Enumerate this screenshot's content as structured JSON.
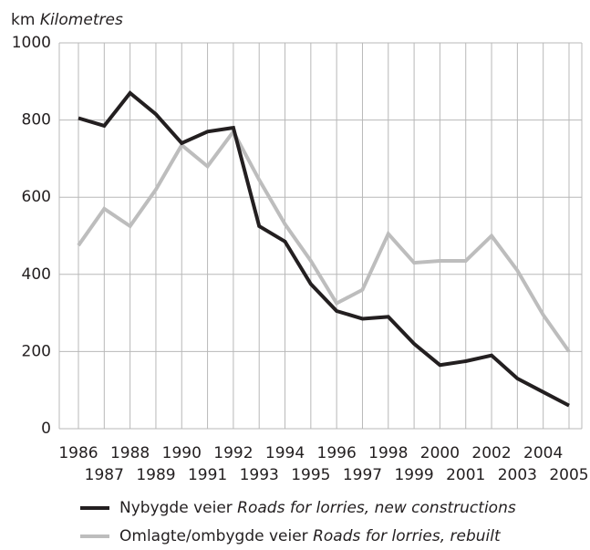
{
  "chart_data": {
    "type": "line",
    "y_unit": "km",
    "ylabel": "Kilometres",
    "categories": [
      "1986",
      "1987",
      "1988",
      "1989",
      "1990",
      "1991",
      "1992",
      "1993",
      "1994",
      "1995",
      "1996",
      "1997",
      "1998",
      "1999",
      "2000",
      "2001",
      "2002",
      "2003",
      "2004",
      "2005"
    ],
    "series": [
      {
        "name": "Nybygde veier",
        "name_en": "Roads for lorries, new constructions",
        "color": "#231f20",
        "values": [
          805,
          785,
          870,
          815,
          740,
          770,
          780,
          525,
          485,
          375,
          305,
          285,
          290,
          220,
          165,
          175,
          190,
          130,
          95,
          60
        ]
      },
      {
        "name": "Omlagte/ombygde veier",
        "name_en": "Roads for lorries, rebuilt",
        "color": "#bdbdbd",
        "values": [
          475,
          570,
          525,
          620,
          735,
          680,
          770,
          645,
          530,
          435,
          325,
          360,
          505,
          430,
          435,
          435,
          500,
          410,
          295,
          200
        ]
      }
    ],
    "ylim": [
      0,
      1000
    ],
    "yticks": [
      0,
      200,
      400,
      600,
      800,
      1000
    ],
    "grid": true
  }
}
